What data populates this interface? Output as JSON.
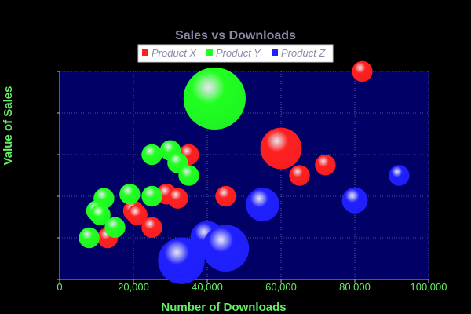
{
  "chart_data": {
    "type": "scatter",
    "subtype": "bubble",
    "title": "Sales vs Downloads",
    "xlabel": "Number of Downloads",
    "ylabel": "Value of Sales",
    "xlim": [
      0,
      100000
    ],
    "ylim": [
      0,
      50
    ],
    "x_ticks": [
      "0",
      "20,000",
      "40,000",
      "60,000",
      "80,000",
      "100,000"
    ],
    "grid": true,
    "legend_position": "top-center",
    "colors": {
      "background": "#000000",
      "plot_area": "#000066",
      "grid": "#9a9ac8",
      "text_title": "#8a8aa6",
      "text_axis": "#66ee66",
      "legend_bg": "#ffffff"
    },
    "series": [
      {
        "name": "Product X",
        "color": "#ff2020",
        "points": [
          {
            "x": 82000,
            "y": 50,
            "z": 4
          },
          {
            "x": 60000,
            "y": 31.5,
            "z": 8
          },
          {
            "x": 72000,
            "y": 27.5,
            "z": 4
          },
          {
            "x": 65000,
            "y": 25,
            "z": 4
          },
          {
            "x": 35000,
            "y": 30,
            "z": 4
          },
          {
            "x": 45000,
            "y": 20,
            "z": 4
          },
          {
            "x": 29000,
            "y": 20.5,
            "z": 4
          },
          {
            "x": 32000,
            "y": 19.5,
            "z": 4
          },
          {
            "x": 20000,
            "y": 16.5,
            "z": 4
          },
          {
            "x": 21000,
            "y": 15.5,
            "z": 4
          },
          {
            "x": 25000,
            "y": 12.5,
            "z": 4
          },
          {
            "x": 13000,
            "y": 10,
            "z": 4
          }
        ]
      },
      {
        "name": "Product Y",
        "color": "#20ff20",
        "points": [
          {
            "x": 42000,
            "y": 43.5,
            "z": 12
          },
          {
            "x": 30000,
            "y": 31,
            "z": 4
          },
          {
            "x": 25000,
            "y": 30,
            "z": 4
          },
          {
            "x": 32000,
            "y": 28,
            "z": 4
          },
          {
            "x": 35000,
            "y": 25,
            "z": 4
          },
          {
            "x": 19000,
            "y": 20.5,
            "z": 4
          },
          {
            "x": 25000,
            "y": 20,
            "z": 4
          },
          {
            "x": 12000,
            "y": 19.5,
            "z": 4
          },
          {
            "x": 10000,
            "y": 16.5,
            "z": 4
          },
          {
            "x": 11000,
            "y": 15.5,
            "z": 4
          },
          {
            "x": 15000,
            "y": 12.5,
            "z": 4
          },
          {
            "x": 8000,
            "y": 10,
            "z": 4
          }
        ]
      },
      {
        "name": "Product Z",
        "color": "#2020ff",
        "points": [
          {
            "x": 92000,
            "y": 25,
            "z": 4
          },
          {
            "x": 80000,
            "y": 19,
            "z": 5
          },
          {
            "x": 55000,
            "y": 18,
            "z": 6.5
          },
          {
            "x": 40000,
            "y": 10,
            "z": 6.5
          },
          {
            "x": 45000,
            "y": 7.5,
            "z": 9
          },
          {
            "x": 33000,
            "y": 4.5,
            "z": 9
          }
        ]
      }
    ]
  }
}
